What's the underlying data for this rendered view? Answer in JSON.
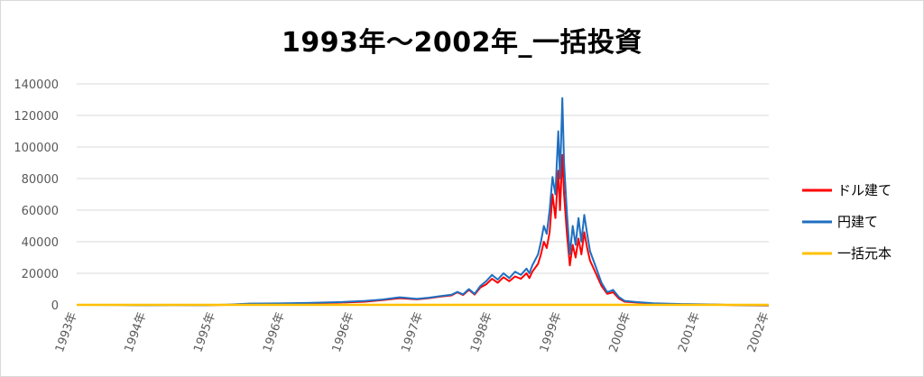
{
  "chart_data": {
    "type": "line",
    "title": "1993年～2002年_一括投資",
    "ylim": [
      0,
      140000
    ],
    "yticks": [
      "0",
      "20000",
      "40000",
      "60000",
      "80000",
      "100000",
      "120000",
      "140000"
    ],
    "x_tick_labels": [
      "1993年",
      "1994年",
      "1995年",
      "1996年",
      "1996年",
      "1997年",
      "1998年",
      "1999年",
      "2000年",
      "2001年",
      "2002年"
    ],
    "grid": true,
    "legend_position": "right",
    "series": [
      {
        "name": "ドル建て",
        "color": "#ff0000",
        "points": [
          [
            0,
            0
          ],
          [
            0.8,
            0
          ],
          [
            1.2,
            -200
          ],
          [
            1.7,
            0
          ],
          [
            2.2,
            -200
          ],
          [
            2.6,
            0
          ],
          [
            3.0,
            600
          ],
          [
            3.5,
            700
          ],
          [
            4.0,
            900
          ],
          [
            4.3,
            1200
          ],
          [
            4.6,
            1500
          ],
          [
            5.0,
            2000
          ],
          [
            5.3,
            3000
          ],
          [
            5.6,
            4200
          ],
          [
            5.9,
            3500
          ],
          [
            6.1,
            4200
          ],
          [
            6.3,
            5200
          ],
          [
            6.5,
            6000
          ],
          [
            6.6,
            8000
          ],
          [
            6.7,
            6200
          ],
          [
            6.8,
            9500
          ],
          [
            6.9,
            6500
          ],
          [
            7.0,
            11000
          ],
          [
            7.1,
            13000
          ],
          [
            7.2,
            16500
          ],
          [
            7.3,
            14000
          ],
          [
            7.4,
            17500
          ],
          [
            7.5,
            15000
          ],
          [
            7.6,
            18000
          ],
          [
            7.7,
            16500
          ],
          [
            7.8,
            20000
          ],
          [
            7.85,
            17000
          ],
          [
            7.9,
            21000
          ],
          [
            8.0,
            26000
          ],
          [
            8.05,
            32000
          ],
          [
            8.1,
            40000
          ],
          [
            8.15,
            36000
          ],
          [
            8.2,
            46000
          ],
          [
            8.25,
            70000
          ],
          [
            8.3,
            55000
          ],
          [
            8.35,
            85000
          ],
          [
            8.38,
            60000
          ],
          [
            8.42,
            95000
          ],
          [
            8.45,
            70000
          ],
          [
            8.5,
            45000
          ],
          [
            8.55,
            25000
          ],
          [
            8.6,
            38000
          ],
          [
            8.65,
            30000
          ],
          [
            8.7,
            42000
          ],
          [
            8.75,
            32000
          ],
          [
            8.8,
            46000
          ],
          [
            8.85,
            36000
          ],
          [
            8.9,
            28000
          ],
          [
            9.0,
            20000
          ],
          [
            9.1,
            12000
          ],
          [
            9.2,
            7000
          ],
          [
            9.3,
            8000
          ],
          [
            9.4,
            4000
          ],
          [
            9.5,
            2000
          ],
          [
            9.7,
            1500
          ],
          [
            10.0,
            800
          ],
          [
            10.5,
            300
          ],
          [
            11.0,
            200
          ],
          [
            11.5,
            -300
          ],
          [
            12.0,
            -400
          ]
        ]
      },
      {
        "name": "円建て",
        "color": "#1f6fc0",
        "points": [
          [
            0,
            0
          ],
          [
            0.8,
            -100
          ],
          [
            1.2,
            -300
          ],
          [
            1.7,
            -100
          ],
          [
            2.2,
            -300
          ],
          [
            2.6,
            100
          ],
          [
            3.0,
            800
          ],
          [
            3.5,
            900
          ],
          [
            4.0,
            1200
          ],
          [
            4.3,
            1500
          ],
          [
            4.6,
            1800
          ],
          [
            5.0,
            2500
          ],
          [
            5.3,
            3400
          ],
          [
            5.6,
            4800
          ],
          [
            5.9,
            3800
          ],
          [
            6.1,
            4500
          ],
          [
            6.3,
            5500
          ],
          [
            6.5,
            6400
          ],
          [
            6.6,
            8200
          ],
          [
            6.7,
            6600
          ],
          [
            6.8,
            10000
          ],
          [
            6.9,
            7000
          ],
          [
            7.0,
            12000
          ],
          [
            7.1,
            15000
          ],
          [
            7.2,
            19000
          ],
          [
            7.3,
            16000
          ],
          [
            7.4,
            20000
          ],
          [
            7.5,
            17000
          ],
          [
            7.6,
            21000
          ],
          [
            7.7,
            19000
          ],
          [
            7.8,
            23000
          ],
          [
            7.85,
            20000
          ],
          [
            7.9,
            25000
          ],
          [
            8.0,
            32000
          ],
          [
            8.05,
            40000
          ],
          [
            8.1,
            50000
          ],
          [
            8.15,
            45000
          ],
          [
            8.2,
            60000
          ],
          [
            8.25,
            81000
          ],
          [
            8.3,
            70000
          ],
          [
            8.35,
            110000
          ],
          [
            8.38,
            80000
          ],
          [
            8.42,
            131000
          ],
          [
            8.45,
            90000
          ],
          [
            8.5,
            58000
          ],
          [
            8.55,
            32000
          ],
          [
            8.6,
            50000
          ],
          [
            8.65,
            38000
          ],
          [
            8.7,
            55000
          ],
          [
            8.75,
            40000
          ],
          [
            8.8,
            57000
          ],
          [
            8.85,
            45000
          ],
          [
            8.9,
            34000
          ],
          [
            9.0,
            24000
          ],
          [
            9.1,
            14000
          ],
          [
            9.2,
            8000
          ],
          [
            9.3,
            9500
          ],
          [
            9.4,
            5000
          ],
          [
            9.5,
            2500
          ],
          [
            9.7,
            1800
          ],
          [
            10.0,
            1000
          ],
          [
            10.5,
            500
          ],
          [
            11.0,
            300
          ],
          [
            11.5,
            -200
          ],
          [
            12.0,
            -300
          ]
        ]
      },
      {
        "name": "一括元本",
        "color": "#ffc000",
        "points": [
          [
            0,
            0
          ],
          [
            12,
            0
          ]
        ]
      }
    ]
  }
}
